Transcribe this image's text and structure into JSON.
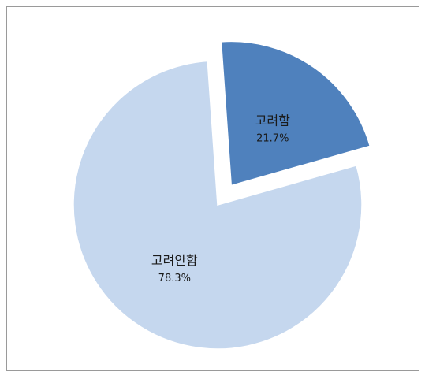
{
  "chart_data": {
    "type": "pie",
    "title": "",
    "series": [
      {
        "values": [
          21.7,
          78.3
        ]
      }
    ],
    "categories": [
      "고려함",
      "고려안함"
    ],
    "slices": [
      {
        "label": "고려함",
        "value": 21.7,
        "display": "21.7%",
        "color": "#4f81bd",
        "exploded": true
      },
      {
        "label": "고려안함",
        "value": 78.3,
        "display": "78.3%",
        "color": "#c5d7ee",
        "exploded": false
      }
    ],
    "legend": "none"
  }
}
